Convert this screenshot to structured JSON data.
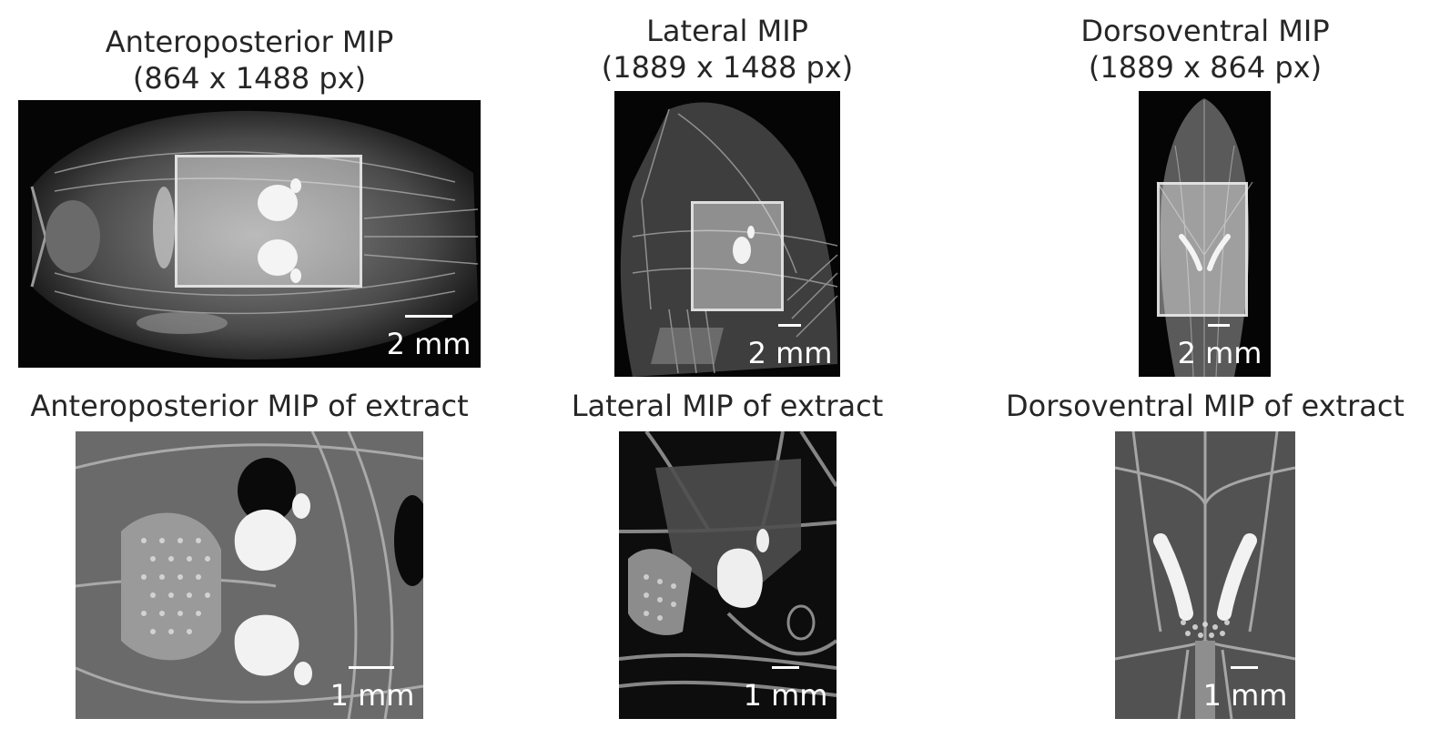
{
  "figure": {
    "top_row": [
      {
        "title_line1": "Anteroposterior MIP",
        "title_line2": "(864 x 1488 px)",
        "scale_label": "2 mm"
      },
      {
        "title_line1": "Lateral MIP",
        "title_line2": "(1889 x 1488 px)",
        "scale_label": "2 mm"
      },
      {
        "title_line1": "Dorsoventral MIP",
        "title_line2": "(1889 x 864 px)",
        "scale_label": "2 mm"
      }
    ],
    "bottom_row": [
      {
        "title": "Anteroposterior MIP of extract",
        "scale_label": "1 mm"
      },
      {
        "title": "Lateral MIP of extract",
        "scale_label": "1 mm"
      },
      {
        "title": "Dorsoventral MIP of extract",
        "scale_label": "1 mm"
      }
    ]
  }
}
